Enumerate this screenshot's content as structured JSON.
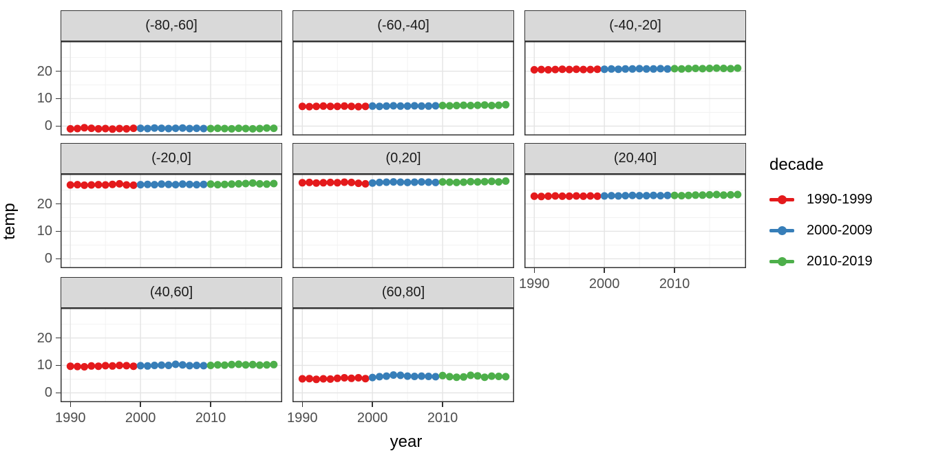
{
  "legend": {
    "title": "decade",
    "entries": [
      {
        "label": "1990-1999",
        "color": "#E41A1C"
      },
      {
        "label": "2000-2009",
        "color": "#377EB8"
      },
      {
        "label": "2010-2019",
        "color": "#4DAF4A"
      }
    ]
  },
  "chart_data": {
    "type": "scatter",
    "title": "",
    "xlabel": "year",
    "ylabel": "temp",
    "facet_by": "latitude band",
    "legend_title": "decade",
    "legend_position": "right",
    "grid": true,
    "xlim": [
      1988.6,
      2020.2
    ],
    "ylim": [
      -3.4,
      30.9
    ],
    "x_major_ticks": [
      1990,
      2000,
      2010
    ],
    "x_minor_ticks": [
      1995,
      2005,
      2015
    ],
    "y_major_ticks": [
      0,
      10,
      20
    ],
    "y_minor_ticks": [
      5,
      15,
      25
    ],
    "years": [
      1990,
      1991,
      1992,
      1993,
      1994,
      1995,
      1996,
      1997,
      1998,
      1999,
      2000,
      2001,
      2002,
      2003,
      2004,
      2005,
      2006,
      2007,
      2008,
      2009,
      2010,
      2011,
      2012,
      2013,
      2014,
      2015,
      2016,
      2017,
      2018,
      2019
    ],
    "decades": [
      {
        "name": "1990-1999",
        "start": 1990,
        "end": 1999,
        "color": "#E41A1C"
      },
      {
        "name": "2000-2009",
        "start": 2000,
        "end": 2009,
        "color": "#377EB8"
      },
      {
        "name": "2010-2019",
        "start": 2010,
        "end": 2019,
        "color": "#4DAF4A"
      }
    ],
    "facets": [
      {
        "label": "(-80,-60]",
        "temps": [
          -1.0,
          -0.9,
          -0.6,
          -0.8,
          -1.0,
          -0.9,
          -1.1,
          -0.9,
          -1.0,
          -0.8,
          -0.8,
          -0.9,
          -0.7,
          -0.8,
          -0.9,
          -0.8,
          -0.7,
          -0.9,
          -0.8,
          -0.9,
          -0.9,
          -0.8,
          -0.9,
          -1.0,
          -0.8,
          -0.9,
          -1.0,
          -0.9,
          -0.7,
          -0.8
        ]
      },
      {
        "label": "(-60,-40]",
        "temps": [
          7.2,
          7.1,
          7.2,
          7.3,
          7.2,
          7.2,
          7.3,
          7.2,
          7.1,
          7.2,
          7.3,
          7.2,
          7.3,
          7.4,
          7.3,
          7.3,
          7.4,
          7.3,
          7.3,
          7.4,
          7.5,
          7.4,
          7.5,
          7.6,
          7.5,
          7.6,
          7.7,
          7.5,
          7.6,
          7.8
        ]
      },
      {
        "label": "(-40,-20]",
        "temps": [
          20.5,
          20.6,
          20.5,
          20.6,
          20.7,
          20.6,
          20.7,
          20.6,
          20.6,
          20.7,
          20.7,
          20.8,
          20.7,
          20.8,
          20.8,
          20.9,
          20.8,
          20.8,
          20.9,
          20.8,
          20.9,
          20.8,
          20.9,
          21.0,
          20.9,
          21.0,
          21.1,
          21.0,
          20.9,
          21.1
        ]
      },
      {
        "label": "(-20,0]",
        "temps": [
          26.9,
          27.0,
          26.8,
          26.9,
          27.0,
          26.9,
          27.1,
          27.3,
          26.9,
          26.8,
          27.0,
          27.1,
          27.0,
          27.2,
          27.1,
          27.0,
          27.2,
          27.1,
          27.0,
          27.1,
          27.2,
          27.0,
          27.1,
          27.2,
          27.3,
          27.4,
          27.6,
          27.3,
          27.2,
          27.4
        ]
      },
      {
        "label": "(0,20]",
        "temps": [
          27.7,
          27.8,
          27.6,
          27.7,
          27.8,
          27.7,
          27.9,
          27.8,
          27.5,
          27.3,
          27.6,
          27.8,
          27.9,
          28.0,
          27.9,
          27.8,
          27.9,
          28.0,
          27.9,
          27.8,
          28.0,
          27.9,
          27.8,
          27.9,
          28.1,
          28.0,
          28.1,
          28.2,
          28.0,
          28.3
        ]
      },
      {
        "label": "(20,40]",
        "temps": [
          22.8,
          22.7,
          22.8,
          22.9,
          22.8,
          22.8,
          22.9,
          22.8,
          22.9,
          22.8,
          22.9,
          23.0,
          22.9,
          23.0,
          23.1,
          23.0,
          23.0,
          23.1,
          23.0,
          23.1,
          23.1,
          23.0,
          23.1,
          23.2,
          23.2,
          23.3,
          23.4,
          23.2,
          23.3,
          23.4
        ]
      },
      {
        "label": "(40,60]",
        "temps": [
          9.7,
          9.6,
          9.5,
          9.8,
          9.7,
          9.9,
          9.8,
          10.0,
          9.9,
          9.7,
          9.9,
          9.8,
          10.0,
          10.1,
          10.0,
          10.4,
          10.2,
          9.9,
          10.0,
          9.9,
          10.0,
          10.2,
          10.1,
          10.3,
          10.4,
          10.2,
          10.3,
          10.1,
          10.2,
          10.3
        ]
      },
      {
        "label": "(60,80]",
        "temps": [
          5.1,
          5.2,
          4.9,
          5.1,
          5.0,
          5.3,
          5.5,
          5.3,
          5.5,
          5.2,
          5.6,
          5.9,
          6.1,
          6.5,
          6.4,
          6.1,
          6.0,
          6.1,
          6.0,
          5.9,
          6.3,
          5.9,
          5.7,
          5.8,
          6.4,
          6.2,
          5.7,
          6.1,
          6.0,
          5.9
        ]
      }
    ]
  },
  "style": {
    "strip_fill": "#D9D9D9",
    "panel_border": "#333333",
    "grid_major": "#E4E4E4",
    "grid_minor": "#F2F2F2",
    "tick_label_color": "#4D4D4D",
    "point_colors": [
      "#E41A1C",
      "#377EB8",
      "#4DAF4A"
    ]
  }
}
